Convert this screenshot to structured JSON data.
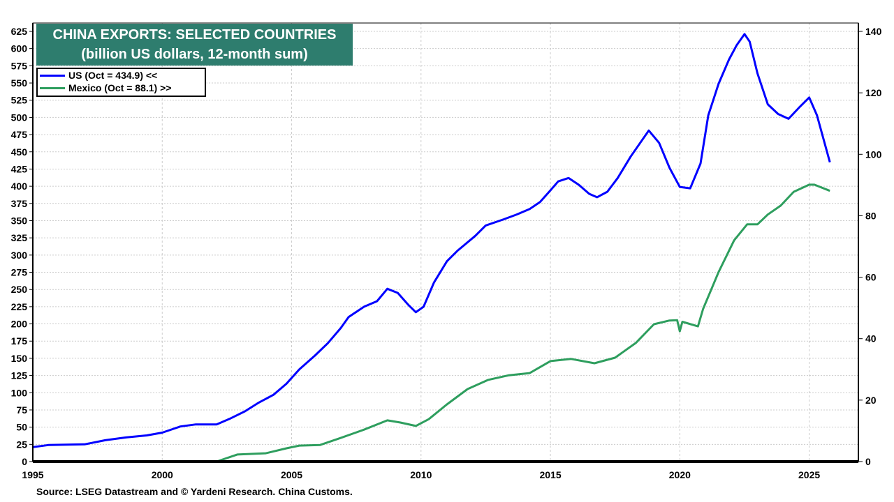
{
  "chart_data": {
    "type": "line",
    "title": "CHINA EXPORTS: SELECTED COUNTRIES",
    "subtitle": "(billion US dollars, 12-month sum)",
    "source": "Source: LSEG Datastream and © Yardeni Research. China Customs.",
    "x_ticks": [
      "1995",
      "2000",
      "2005",
      "2010",
      "2015",
      "2020",
      "2025"
    ],
    "xlim": [
      1995,
      2026.9
    ],
    "left_axis": {
      "ylim": [
        0,
        625
      ],
      "ticks": [
        "0",
        "25",
        "50",
        "75",
        "100",
        "125",
        "150",
        "175",
        "200",
        "225",
        "250",
        "275",
        "300",
        "325",
        "350",
        "375",
        "400",
        "425",
        "450",
        "475",
        "500",
        "525",
        "550",
        "575",
        "600",
        "625"
      ]
    },
    "right_axis": {
      "ylim": [
        0,
        140
      ],
      "ticks": [
        "0",
        "20",
        "40",
        "60",
        "80",
        "100",
        "120",
        "140"
      ]
    },
    "grid": true,
    "legend_placement": "top-left",
    "series": [
      {
        "name": "US (Oct = 434.9) <<",
        "axis": "left",
        "color": "#0000ff",
        "x": [
          1995.0,
          1995.6,
          1997.0,
          1997.8,
          1998.6,
          1999.4,
          2000.0,
          2000.7,
          2001.3,
          2002.1,
          2002.6,
          2003.2,
          2003.7,
          2004.3,
          2004.8,
          2005.3,
          2005.9,
          2006.4,
          2006.9,
          2007.2,
          2007.8,
          2008.3,
          2008.7,
          2009.1,
          2009.5,
          2009.8,
          2010.1,
          2010.5,
          2011.0,
          2011.4,
          2012.1,
          2012.5,
          2013.2,
          2013.7,
          2014.2,
          2014.6,
          2015.0,
          2015.3,
          2015.7,
          2016.1,
          2016.5,
          2016.8,
          2017.2,
          2017.6,
          2018.1,
          2018.8,
          2019.2,
          2019.6,
          2020.0,
          2020.4,
          2020.8,
          2021.1,
          2021.5,
          2021.9,
          2022.2,
          2022.5,
          2022.7,
          2023.0,
          2023.4,
          2023.8,
          2024.2,
          2024.6,
          2025.0,
          2025.3,
          2025.8
        ],
        "y": [
          21,
          24,
          25,
          31,
          35,
          38,
          42,
          51,
          54,
          54,
          62,
          73,
          85,
          97,
          113,
          134,
          154,
          172,
          194,
          210,
          225,
          233,
          251,
          245,
          228,
          217,
          225,
          260,
          291,
          306,
          328,
          343,
          352,
          359,
          367,
          377,
          394,
          407,
          412,
          402,
          389,
          384,
          392,
          412,
          443,
          481,
          463,
          427,
          399,
          397,
          433,
          503,
          549,
          584,
          605,
          621,
          610,
          564,
          519,
          505,
          498,
          514,
          529,
          503,
          434.9
        ]
      },
      {
        "name": "Mexico (Oct = 88.1) >>",
        "axis": "right",
        "color": "#2e9e5e",
        "x": [
          2002.1,
          2002.9,
          2004.0,
          2004.8,
          2005.3,
          2006.1,
          2006.9,
          2007.8,
          2008.7,
          2009.2,
          2009.8,
          2010.3,
          2011.0,
          2011.8,
          2012.6,
          2013.4,
          2014.2,
          2015.0,
          2015.8,
          2016.7,
          2017.5,
          2018.3,
          2019.0,
          2019.6,
          2019.9,
          2020.0,
          2020.1,
          2020.7,
          2020.9,
          2021.5,
          2022.1,
          2022.6,
          2023.0,
          2023.4,
          2023.9,
          2024.4,
          2025.0,
          2025.2,
          2025.8
        ],
        "y": [
          0,
          2.3,
          2.7,
          4.3,
          5.2,
          5.4,
          7.7,
          10.4,
          13.4,
          12.7,
          11.6,
          13.8,
          18.6,
          23.6,
          26.6,
          28.1,
          28.8,
          32.7,
          33.4,
          32.0,
          33.8,
          38.6,
          44.7,
          45.9,
          46.0,
          42.4,
          45.5,
          44.0,
          49.7,
          61.7,
          72.0,
          77.2,
          77.2,
          80.4,
          83.3,
          87.8,
          90.1,
          90.1,
          88.1
        ]
      }
    ]
  }
}
